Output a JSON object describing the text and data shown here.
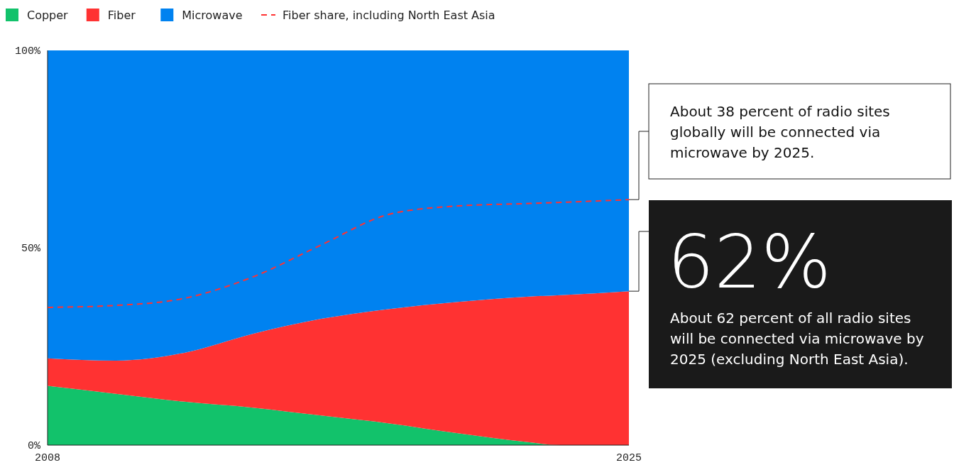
{
  "chart_data": {
    "type": "area",
    "stacked": true,
    "x": [
      2008,
      2010,
      2012,
      2014,
      2016,
      2018,
      2020,
      2022,
      2023,
      2025
    ],
    "series": [
      {
        "name": "Copper",
        "color": "#12c26b",
        "values": [
          15,
          13,
          11,
          9.5,
          7.5,
          5.5,
          3,
          0.8,
          0,
          0
        ]
      },
      {
        "name": "Fiber",
        "color": "#ff3232",
        "values": [
          7,
          8.4,
          12.4,
          18.7,
          24.5,
          29,
          33.3,
          36.8,
          38,
          39
        ]
      },
      {
        "name": "Microwave",
        "color": "#0082f0",
        "values": [
          78,
          78.6,
          76.6,
          71.8,
          68,
          65.5,
          63.7,
          62.4,
          62,
          61
        ]
      },
      {
        "name": "Fiber share, including North East Asia",
        "type": "line",
        "color": "#ff3232",
        "line_style": "dashed",
        "values": [
          34.9,
          35.4,
          37.2,
          42.6,
          50.7,
          58.5,
          60.6,
          61.2,
          61.5,
          62.2
        ]
      }
    ],
    "xlim": [
      2008,
      2025
    ],
    "xticks": [
      2008,
      2025
    ],
    "ylim": [
      0,
      100
    ],
    "yticks": [
      {
        "value": 0,
        "label": "0%"
      },
      {
        "value": 50,
        "label": "50%"
      },
      {
        "value": 100,
        "label": "100%"
      }
    ],
    "grid": false,
    "legend": "top left",
    "annotations": [
      "About 38 percent of radio sites globally will be connected via microwave by 2025.",
      "62%",
      "About 62 percent of all radio sites will be connected via microwave by 2025 (excluding North East Asia)."
    ]
  }
}
